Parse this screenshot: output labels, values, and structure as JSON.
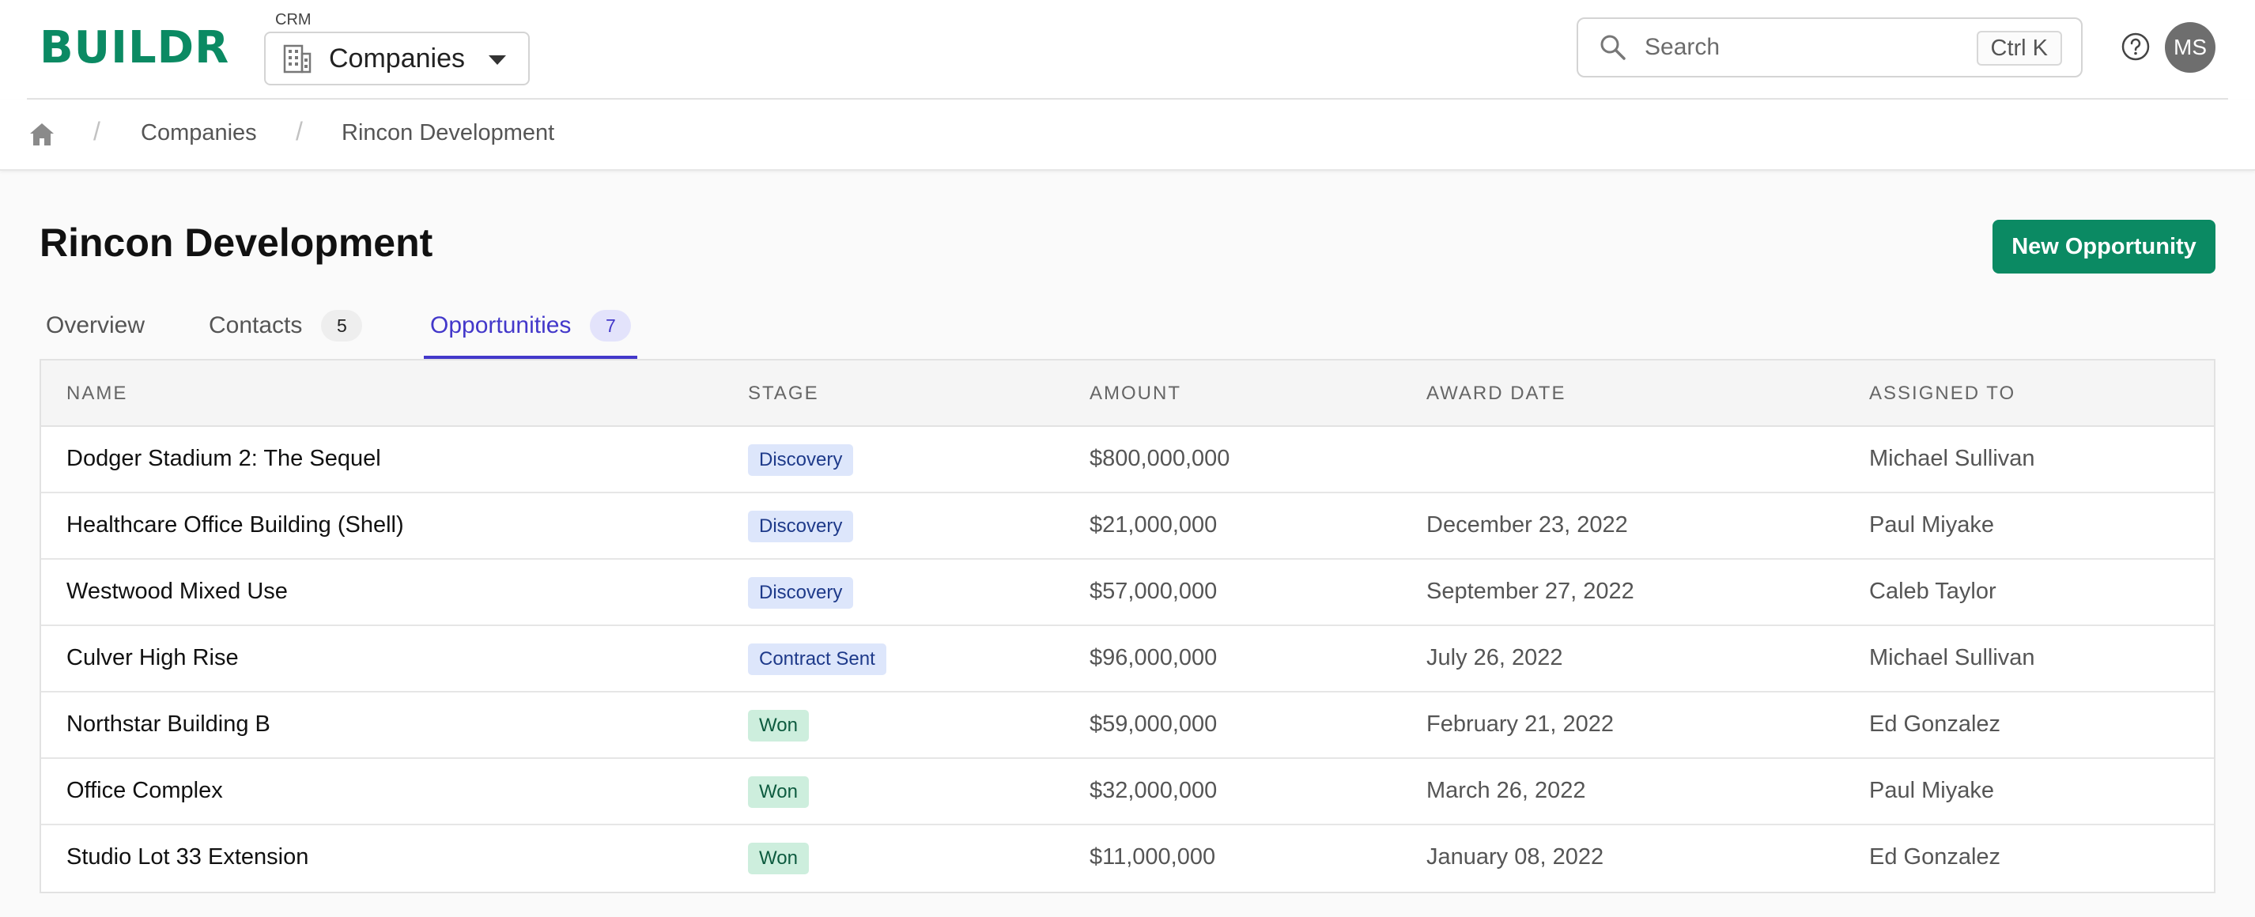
{
  "app": {
    "logo": "BUILDR"
  },
  "module": {
    "caption": "CRM",
    "selected": "Companies"
  },
  "search": {
    "placeholder": "Search",
    "shortcut": "Ctrl K"
  },
  "user": {
    "initials": "MS"
  },
  "breadcrumb": {
    "items": [
      "Companies",
      "Rincon Development"
    ]
  },
  "page": {
    "title": "Rincon Development",
    "primary_action": "New Opportunity"
  },
  "tabs": [
    {
      "label": "Overview",
      "count": null,
      "active": false
    },
    {
      "label": "Contacts",
      "count": "5",
      "active": false
    },
    {
      "label": "Opportunities",
      "count": "7",
      "active": true
    }
  ],
  "table": {
    "columns": [
      "NAME",
      "STAGE",
      "AMOUNT",
      "AWARD DATE",
      "ASSIGNED TO"
    ],
    "rows": [
      {
        "name": "Dodger Stadium 2: The Sequel",
        "stage": "Discovery",
        "stage_color": "blue",
        "amount": "$800,000,000",
        "award_date": "",
        "assigned_to": "Michael Sullivan"
      },
      {
        "name": "Healthcare Office Building (Shell)",
        "stage": "Discovery",
        "stage_color": "blue",
        "amount": "$21,000,000",
        "award_date": "December 23, 2022",
        "assigned_to": "Paul Miyake"
      },
      {
        "name": "Westwood Mixed Use",
        "stage": "Discovery",
        "stage_color": "blue",
        "amount": "$57,000,000",
        "award_date": "September 27, 2022",
        "assigned_to": "Caleb Taylor"
      },
      {
        "name": "Culver High Rise",
        "stage": "Contract Sent",
        "stage_color": "blue",
        "amount": "$96,000,000",
        "award_date": "July 26, 2022",
        "assigned_to": "Michael Sullivan"
      },
      {
        "name": "Northstar Building B",
        "stage": "Won",
        "stage_color": "green",
        "amount": "$59,000,000",
        "award_date": "February 21, 2022",
        "assigned_to": "Ed Gonzalez"
      },
      {
        "name": "Office Complex",
        "stage": "Won",
        "stage_color": "green",
        "amount": "$32,000,000",
        "award_date": "March 26, 2022",
        "assigned_to": "Paul Miyake"
      },
      {
        "name": "Studio Lot 33 Extension",
        "stage": "Won",
        "stage_color": "green",
        "amount": "$11,000,000",
        "award_date": "January 08, 2022",
        "assigned_to": "Ed Gonzalez"
      }
    ]
  },
  "colors": {
    "brand": "#0b8a63",
    "accent": "#4338ca"
  },
  "icons": {
    "module": "building-icon",
    "search": "search-icon",
    "help": "help-circle-icon",
    "home": "home-icon",
    "dropdown": "caret-down-icon"
  }
}
